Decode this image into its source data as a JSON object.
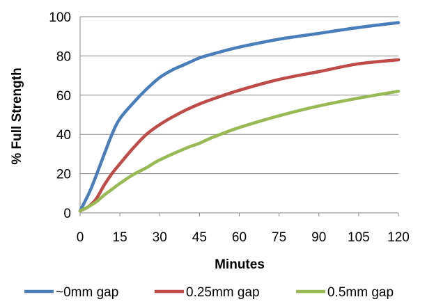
{
  "chart_data": {
    "type": "line",
    "title": "",
    "xlabel": "Minutes",
    "ylabel": "% Full Strength",
    "xlim": [
      0,
      120
    ],
    "ylim": [
      0,
      100
    ],
    "x_ticks": [
      "0",
      "15",
      "30",
      "45",
      "60",
      "75",
      "90",
      "105",
      "120"
    ],
    "y_ticks": [
      "0",
      "20",
      "40",
      "60",
      "80",
      "100"
    ],
    "grid": "horizontal",
    "legend_position": "bottom",
    "series": [
      {
        "name": "~0mm gap",
        "color": "#4a7ebb",
        "x": [
          0,
          4,
          8,
          12,
          15,
          20,
          25,
          30,
          35,
          40,
          45,
          50,
          60,
          75,
          90,
          105,
          120
        ],
        "y": [
          1,
          12,
          26,
          40,
          48,
          56,
          63,
          69,
          73,
          76,
          79,
          81,
          84.5,
          88.5,
          91.5,
          94.5,
          97
        ]
      },
      {
        "name": "0.25mm gap",
        "color": "#be4b48",
        "x": [
          0,
          3,
          6,
          9,
          12,
          15,
          20,
          25,
          30,
          35,
          40,
          45,
          50,
          60,
          75,
          90,
          105,
          120
        ],
        "y": [
          1,
          3,
          7,
          14,
          20,
          25,
          33,
          40,
          45,
          49,
          52.5,
          55.5,
          58,
          62.5,
          68,
          72,
          76,
          78
        ]
      },
      {
        "name": "0.5mm gap",
        "color": "#98b954",
        "x": [
          0,
          3,
          6,
          9,
          12,
          15,
          20,
          25,
          30,
          40,
          45,
          50,
          60,
          75,
          90,
          105,
          120
        ],
        "y": [
          1,
          3,
          5.5,
          9,
          12,
          15,
          19.5,
          23,
          27,
          33,
          35.5,
          38.5,
          43.5,
          49.5,
          54.5,
          58.5,
          62
        ]
      }
    ]
  }
}
